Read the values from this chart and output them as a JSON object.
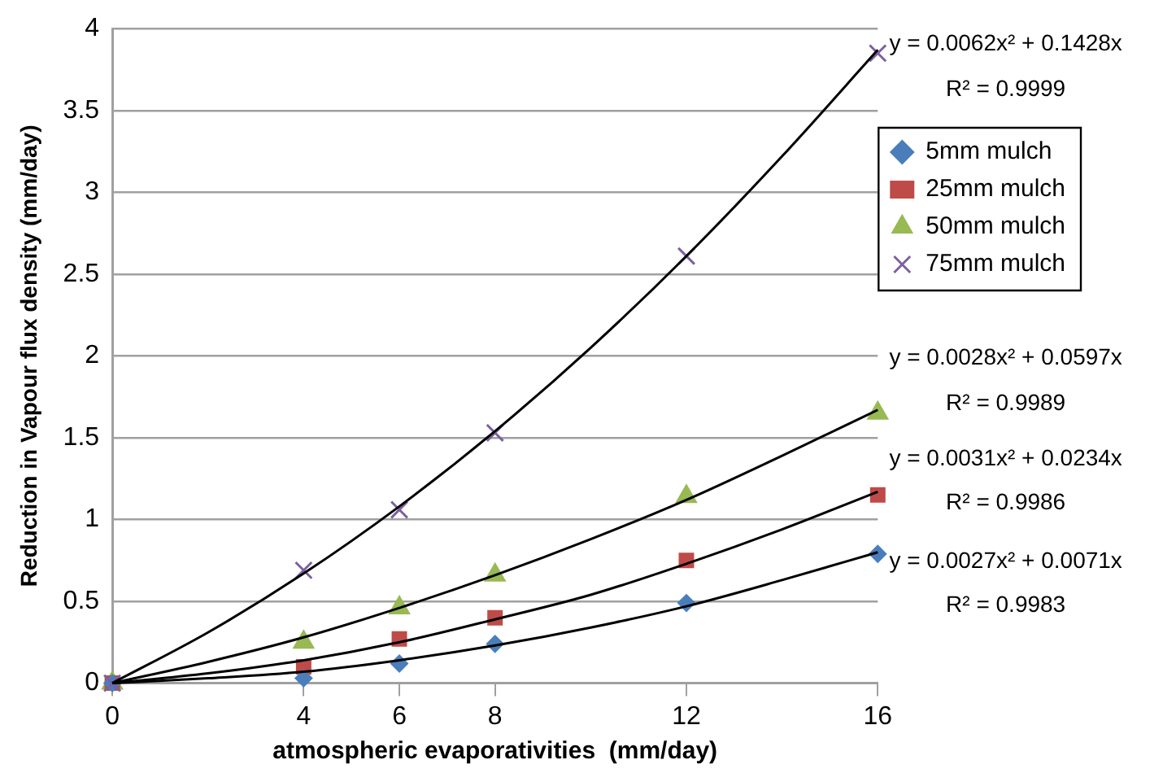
{
  "chart_data": {
    "type": "scatter",
    "xlabel": "atmospheric evaporativities  (mm/day)",
    "ylabel": "Reduction in Vapour flux density (mm/day)",
    "xlim": [
      0,
      16
    ],
    "xticks": [
      0,
      4,
      6,
      8,
      12,
      16
    ],
    "ylim": [
      0,
      4
    ],
    "yticks": [
      0,
      0.5,
      1,
      1.5,
      2,
      2.5,
      3,
      3.5,
      4
    ],
    "grid": "y",
    "legend": "right",
    "x": [
      0,
      4,
      6,
      8,
      12,
      16
    ],
    "series": [
      {
        "name": "5mm mulch",
        "color": "#4a7ebb",
        "marker": "diamond",
        "values": [
          0,
          0.03,
          0.12,
          0.24,
          0.49,
          0.79
        ]
      },
      {
        "name": "25mm mulch",
        "color": "#be4b48",
        "marker": "square",
        "values": [
          0,
          0.1,
          0.27,
          0.4,
          0.75,
          1.15
        ]
      },
      {
        "name": "50mm mulch",
        "color": "#98b954",
        "marker": "triangle",
        "values": [
          0,
          0.25,
          0.46,
          0.66,
          1.14,
          1.65
        ]
      },
      {
        "name": "75mm mulch",
        "color": "#7d60a0",
        "marker": "cross",
        "values": [
          0,
          0.69,
          1.06,
          1.53,
          2.61,
          3.85
        ]
      },
      {
        "type": "line",
        "color": "#000000",
        "marker": "none",
        "x": [
          0,
          2,
          4,
          6,
          8,
          10,
          12,
          14,
          16
        ],
        "values": [
          0,
          0.03,
          0.07,
          0.14,
          0.23,
          0.34,
          0.47,
          0.63,
          0.8
        ]
      },
      {
        "type": "line",
        "color": "#000000",
        "marker": "none",
        "x": [
          0,
          2,
          4,
          6,
          8,
          10,
          12,
          14,
          16
        ],
        "values": [
          0,
          0.06,
          0.14,
          0.25,
          0.39,
          0.54,
          0.73,
          0.94,
          1.17
        ]
      },
      {
        "type": "line",
        "color": "#000000",
        "marker": "none",
        "x": [
          0,
          2,
          4,
          6,
          8,
          10,
          12,
          14,
          16
        ],
        "values": [
          0,
          0.13,
          0.28,
          0.46,
          0.66,
          0.88,
          1.12,
          1.39,
          1.67
        ]
      },
      {
        "type": "line",
        "color": "#000000",
        "marker": "none",
        "x": [
          0,
          2,
          4,
          6,
          8,
          10,
          12,
          14,
          16
        ],
        "values": [
          0,
          0.31,
          0.67,
          1.08,
          1.54,
          2.05,
          2.61,
          3.22,
          3.87
        ]
      }
    ],
    "annotations": [
      "y = 0.0062x² + 0.1428x",
      "R² = 0.9999",
      "y = 0.0028x² + 0.0597x",
      "R² = 0.9989",
      "y = 0.0031x² + 0.0234x",
      "R² = 0.9986",
      "y = 0.0027x² + 0.0071x",
      "R² = 0.9983"
    ]
  }
}
